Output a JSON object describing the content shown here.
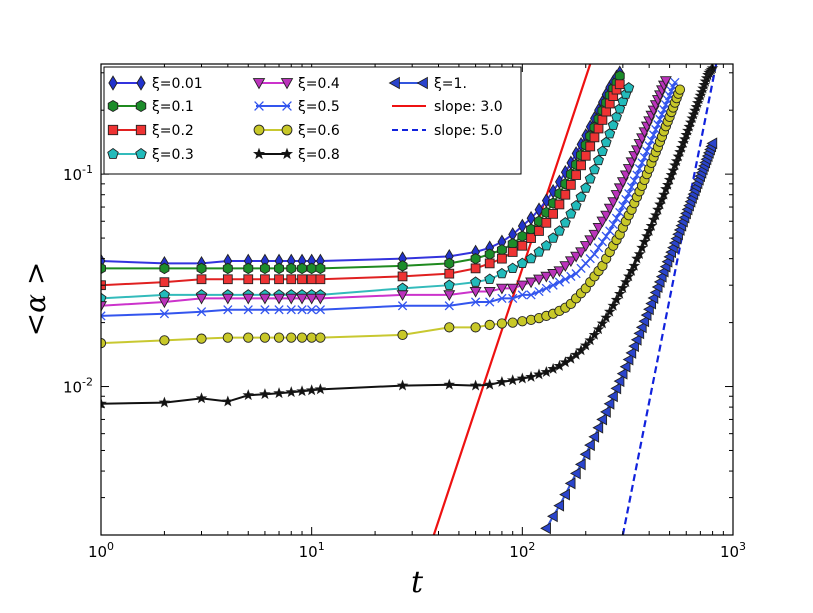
{
  "chart_data": {
    "type": "line",
    "scale": {
      "x": "log",
      "y": "log"
    },
    "xlim": [
      1,
      1000
    ],
    "ylim": [
      0.002,
      0.33
    ],
    "xlabel": "t",
    "ylabel": "<α >",
    "x_ticks": [
      {
        "base": "10",
        "exp": "0",
        "value": 1
      },
      {
        "base": "10",
        "exp": "1",
        "value": 10
      },
      {
        "base": "10",
        "exp": "2",
        "value": 100
      },
      {
        "base": "10",
        "exp": "3",
        "value": 1000
      }
    ],
    "y_ticks": [
      {
        "base": "10",
        "exp": "-2",
        "value": 0.01
      },
      {
        "base": "10",
        "exp": "-1",
        "value": 0.1
      }
    ],
    "legend_position": "top-left",
    "series": [
      {
        "name": "ξ=0.01",
        "color": "#3333dd",
        "marker": "diamond",
        "marker_fill": "#2233cc",
        "x": [
          1,
          2,
          3,
          4,
          5,
          6,
          7,
          8,
          9,
          10,
          11,
          27,
          45,
          60,
          70,
          80,
          90,
          100,
          110,
          120,
          130,
          140,
          150,
          160,
          170,
          180,
          190,
          200,
          210,
          220,
          230,
          240,
          250,
          260,
          270,
          280,
          290
        ],
        "y": [
          0.039,
          0.038,
          0.038,
          0.039,
          0.039,
          0.039,
          0.039,
          0.039,
          0.039,
          0.039,
          0.039,
          0.04,
          0.041,
          0.043,
          0.045,
          0.048,
          0.052,
          0.057,
          0.062,
          0.068,
          0.075,
          0.083,
          0.092,
          0.102,
          0.113,
          0.125,
          0.138,
          0.152,
          0.167,
          0.183,
          0.2,
          0.218,
          0.237,
          0.256,
          0.272,
          0.287,
          0.3
        ]
      },
      {
        "name": "ξ=0.1",
        "color": "#1f8a1f",
        "marker": "hexagon",
        "marker_fill": "#1c8c2a",
        "x": [
          1,
          2,
          3,
          4,
          5,
          6,
          7,
          8,
          9,
          10,
          11,
          27,
          45,
          60,
          70,
          80,
          90,
          100,
          110,
          120,
          130,
          140,
          150,
          160,
          170,
          180,
          190,
          200,
          210,
          220,
          230,
          240,
          250,
          260,
          270,
          280,
          290
        ],
        "y": [
          0.036,
          0.036,
          0.036,
          0.036,
          0.036,
          0.036,
          0.036,
          0.036,
          0.036,
          0.036,
          0.036,
          0.037,
          0.038,
          0.04,
          0.042,
          0.044,
          0.047,
          0.051,
          0.055,
          0.06,
          0.066,
          0.073,
          0.081,
          0.09,
          0.1,
          0.111,
          0.123,
          0.137,
          0.151,
          0.166,
          0.182,
          0.199,
          0.217,
          0.235,
          0.253,
          0.27,
          0.29
        ]
      },
      {
        "name": "ξ=0.2",
        "color": "#e02020",
        "marker": "square",
        "marker_fill": "#ee3333",
        "x": [
          1,
          2,
          3,
          4,
          5,
          6,
          7,
          8,
          9,
          10,
          11,
          27,
          45,
          60,
          70,
          80,
          90,
          100,
          110,
          120,
          130,
          140,
          150,
          160,
          170,
          180,
          190,
          200,
          210,
          220,
          230,
          240,
          250,
          260,
          270,
          280,
          290
        ],
        "y": [
          0.03,
          0.031,
          0.032,
          0.032,
          0.032,
          0.032,
          0.032,
          0.032,
          0.032,
          0.032,
          0.032,
          0.033,
          0.034,
          0.036,
          0.038,
          0.04,
          0.043,
          0.046,
          0.05,
          0.054,
          0.059,
          0.065,
          0.072,
          0.08,
          0.089,
          0.099,
          0.11,
          0.122,
          0.135,
          0.149,
          0.164,
          0.18,
          0.197,
          0.215,
          0.233,
          0.25,
          0.265
        ]
      },
      {
        "name": "ξ=0.3",
        "color": "#33bbbb",
        "marker": "pentagon",
        "marker_fill": "#22bbbb",
        "x": [
          1,
          2,
          3,
          4,
          5,
          6,
          7,
          8,
          9,
          10,
          11,
          27,
          45,
          60,
          70,
          80,
          90,
          100,
          110,
          120,
          130,
          140,
          150,
          160,
          170,
          180,
          190,
          200,
          210,
          220,
          230,
          240,
          250,
          260,
          270,
          280,
          290,
          300,
          310,
          320
        ],
        "y": [
          0.026,
          0.027,
          0.027,
          0.027,
          0.027,
          0.027,
          0.027,
          0.027,
          0.027,
          0.027,
          0.027,
          0.029,
          0.03,
          0.031,
          0.032,
          0.034,
          0.036,
          0.038,
          0.04,
          0.043,
          0.046,
          0.05,
          0.054,
          0.059,
          0.065,
          0.071,
          0.078,
          0.086,
          0.095,
          0.105,
          0.116,
          0.128,
          0.141,
          0.155,
          0.17,
          0.186,
          0.203,
          0.22,
          0.238,
          0.255
        ]
      },
      {
        "name": "ξ=0.4",
        "color": "#cc33cc",
        "marker": "triangle-down",
        "marker_fill": "#bb33bb",
        "x": [
          1,
          2,
          3,
          4,
          5,
          6,
          7,
          8,
          9,
          10,
          11,
          27,
          45,
          60,
          70,
          80,
          90,
          100,
          110,
          120,
          130,
          140,
          150,
          160,
          170,
          180,
          190,
          200,
          210,
          220,
          230,
          240,
          250,
          260,
          270,
          280,
          290,
          300,
          310,
          320,
          330,
          340,
          350,
          360,
          370,
          380,
          390,
          400,
          410,
          420,
          430,
          440,
          450,
          460,
          470,
          480
        ],
        "y": [
          0.024,
          0.025,
          0.026,
          0.026,
          0.026,
          0.026,
          0.026,
          0.026,
          0.026,
          0.026,
          0.026,
          0.027,
          0.027,
          0.028,
          0.028,
          0.029,
          0.029,
          0.03,
          0.031,
          0.032,
          0.033,
          0.034,
          0.035,
          0.037,
          0.039,
          0.041,
          0.043,
          0.046,
          0.049,
          0.052,
          0.056,
          0.06,
          0.064,
          0.069,
          0.074,
          0.08,
          0.086,
          0.092,
          0.099,
          0.106,
          0.114,
          0.122,
          0.13,
          0.139,
          0.148,
          0.158,
          0.168,
          0.178,
          0.189,
          0.2,
          0.212,
          0.224,
          0.236,
          0.249,
          0.262,
          0.275
        ]
      },
      {
        "name": "ξ=0.5",
        "color": "#3355ee",
        "marker": "x",
        "marker_fill": "#3355ee",
        "x": [
          1,
          2,
          3,
          4,
          5,
          6,
          7,
          8,
          9,
          10,
          11,
          27,
          45,
          60,
          70,
          80,
          90,
          100,
          110,
          120,
          130,
          140,
          150,
          160,
          170,
          180,
          190,
          200,
          210,
          220,
          230,
          240,
          250,
          260,
          270,
          280,
          290,
          300,
          310,
          320,
          330,
          340,
          350,
          360,
          370,
          380,
          390,
          400,
          410,
          420,
          430,
          440,
          450,
          460,
          470,
          480,
          490,
          500,
          510,
          520,
          530
        ],
        "y": [
          0.0215,
          0.022,
          0.0225,
          0.023,
          0.023,
          0.023,
          0.023,
          0.023,
          0.023,
          0.023,
          0.023,
          0.024,
          0.024,
          0.025,
          0.025,
          0.026,
          0.026,
          0.027,
          0.027,
          0.028,
          0.029,
          0.03,
          0.031,
          0.032,
          0.033,
          0.034,
          0.036,
          0.038,
          0.04,
          0.042,
          0.045,
          0.048,
          0.051,
          0.054,
          0.058,
          0.062,
          0.066,
          0.071,
          0.076,
          0.081,
          0.087,
          0.093,
          0.099,
          0.106,
          0.113,
          0.12,
          0.128,
          0.136,
          0.144,
          0.153,
          0.162,
          0.171,
          0.181,
          0.191,
          0.201,
          0.212,
          0.223,
          0.234,
          0.246,
          0.258,
          0.27
        ]
      },
      {
        "name": "ξ=0.6",
        "color": "#c8c830",
        "marker": "circle",
        "marker_fill": "#c8c828",
        "x": [
          1,
          2,
          3,
          4,
          5,
          6,
          7,
          8,
          9,
          10,
          11,
          27,
          45,
          60,
          70,
          80,
          90,
          100,
          110,
          120,
          130,
          140,
          150,
          160,
          170,
          180,
          190,
          200,
          210,
          220,
          230,
          240,
          250,
          260,
          270,
          280,
          290,
          300,
          310,
          320,
          330,
          340,
          350,
          360,
          370,
          380,
          390,
          400,
          410,
          420,
          430,
          440,
          450,
          460,
          470,
          480,
          490,
          500,
          510,
          520,
          530,
          540,
          550,
          560
        ],
        "y": [
          0.016,
          0.0165,
          0.0168,
          0.017,
          0.017,
          0.017,
          0.017,
          0.017,
          0.017,
          0.017,
          0.017,
          0.0175,
          0.019,
          0.019,
          0.0195,
          0.0198,
          0.02,
          0.0203,
          0.0206,
          0.021,
          0.0215,
          0.022,
          0.0227,
          0.0235,
          0.0245,
          0.026,
          0.0275,
          0.029,
          0.031,
          0.033,
          0.035,
          0.037,
          0.04,
          0.043,
          0.046,
          0.049,
          0.052,
          0.056,
          0.06,
          0.064,
          0.068,
          0.073,
          0.078,
          0.083,
          0.088,
          0.094,
          0.1,
          0.106,
          0.113,
          0.12,
          0.127,
          0.134,
          0.142,
          0.15,
          0.159,
          0.168,
          0.177,
          0.186,
          0.196,
          0.206,
          0.217,
          0.228,
          0.239,
          0.25
        ]
      },
      {
        "name": "ξ=0.8",
        "color": "#111111",
        "marker": "star",
        "marker_fill": "#111111",
        "x": [
          1,
          2,
          3,
          4,
          5,
          6,
          7,
          8,
          9,
          10,
          11,
          27,
          45,
          60,
          70,
          80,
          90,
          100,
          110,
          120,
          130,
          140,
          150,
          160,
          170,
          180,
          190,
          200,
          210,
          220,
          230,
          240,
          250,
          260,
          270,
          280,
          290,
          300,
          310,
          320,
          330,
          340,
          350,
          360,
          370,
          380,
          390,
          400,
          410,
          420,
          430,
          440,
          450,
          460,
          470,
          480,
          490,
          500,
          510,
          520,
          530,
          540,
          550,
          560,
          570,
          580,
          590,
          600,
          610,
          620,
          630,
          640,
          650,
          660,
          670,
          680,
          690,
          700,
          710,
          720,
          730,
          740,
          750,
          760,
          770,
          780,
          790,
          800
        ],
        "y": [
          0.0083,
          0.0084,
          0.0088,
          0.0085,
          0.0091,
          0.0092,
          0.0093,
          0.0094,
          0.0095,
          0.0096,
          0.0097,
          0.0101,
          0.0102,
          0.0101,
          0.0102,
          0.0105,
          0.0107,
          0.0109,
          0.0111,
          0.0114,
          0.0117,
          0.0121,
          0.0125,
          0.013,
          0.0135,
          0.0141,
          0.0148,
          0.0156,
          0.0165,
          0.0175,
          0.0186,
          0.0198,
          0.0211,
          0.0225,
          0.024,
          0.0256,
          0.0273,
          0.0291,
          0.031,
          0.033,
          0.035,
          0.037,
          0.04,
          0.042,
          0.045,
          0.048,
          0.051,
          0.054,
          0.057,
          0.061,
          0.064,
          0.068,
          0.072,
          0.076,
          0.08,
          0.085,
          0.089,
          0.094,
          0.099,
          0.104,
          0.11,
          0.115,
          0.121,
          0.127,
          0.133,
          0.14,
          0.146,
          0.153,
          0.16,
          0.167,
          0.175,
          0.183,
          0.191,
          0.199,
          0.207,
          0.216,
          0.225,
          0.234,
          0.243,
          0.253,
          0.263,
          0.273,
          0.283,
          0.293,
          0.3,
          0.305,
          0.31,
          0.315
        ]
      },
      {
        "name": "ξ=1.",
        "color": "#3355dd",
        "marker": "triangle-left",
        "marker_fill": "#2a44cc",
        "x": [
          130,
          140,
          150,
          160,
          170,
          180,
          190,
          200,
          210,
          220,
          230,
          240,
          250,
          260,
          270,
          280,
          290,
          300,
          310,
          320,
          330,
          340,
          350,
          360,
          370,
          380,
          390,
          400,
          410,
          420,
          430,
          440,
          450,
          460,
          470,
          480,
          490,
          500,
          510,
          520,
          530,
          540,
          550,
          560,
          570,
          580,
          590,
          600,
          610,
          620,
          630,
          640,
          650,
          660,
          670,
          680,
          690,
          700,
          710,
          720,
          730,
          740,
          750,
          760,
          770,
          780,
          790,
          800
        ],
        "y": [
          0.00215,
          0.00245,
          0.00275,
          0.0031,
          0.0035,
          0.0039,
          0.0043,
          0.0048,
          0.0053,
          0.0058,
          0.0064,
          0.007,
          0.0076,
          0.0083,
          0.009,
          0.0098,
          0.0106,
          0.0115,
          0.0124,
          0.0134,
          0.0144,
          0.0155,
          0.0166,
          0.0178,
          0.019,
          0.0203,
          0.0217,
          0.0231,
          0.0246,
          0.0261,
          0.0277,
          0.0294,
          0.0311,
          0.0329,
          0.0348,
          0.0367,
          0.0387,
          0.0408,
          0.0429,
          0.0451,
          0.0474,
          0.0497,
          0.0521,
          0.0546,
          0.0572,
          0.0598,
          0.0625,
          0.0653,
          0.0682,
          0.0711,
          0.0742,
          0.0773,
          0.0805,
          0.0838,
          0.0871,
          0.0906,
          0.0942,
          0.0978,
          0.1015,
          0.1054,
          0.1093,
          0.1134,
          0.1175,
          0.1217,
          0.126,
          0.1305,
          0.135,
          0.1396
        ]
      }
    ],
    "reference_lines": [
      {
        "name": "slope: 3.0",
        "color": "#ee1111",
        "style": "solid",
        "slope": 3.0,
        "x": [
          38,
          210
        ],
        "y": [
          0.002,
          0.33
        ]
      },
      {
        "name": "slope: 5.0",
        "color": "#1122dd",
        "style": "dashed",
        "slope": 5.0,
        "x": [
          300,
          832
        ],
        "y": [
          0.002,
          0.33
        ]
      }
    ]
  }
}
